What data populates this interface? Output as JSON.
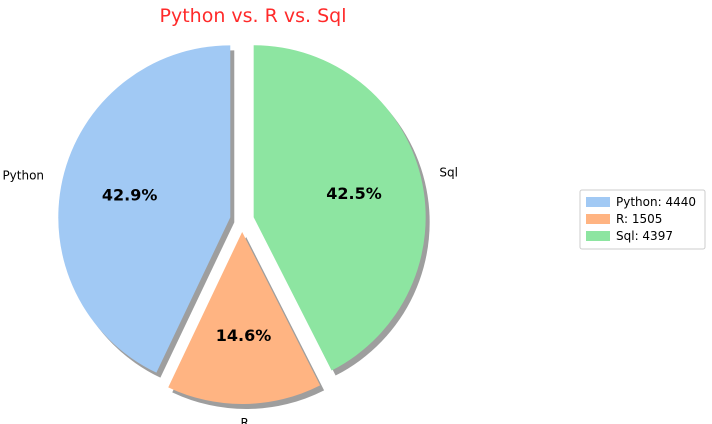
{
  "chart_data": {
    "type": "pie",
    "title": "Python vs. R vs. Sql",
    "title_color": "#ff2a2a",
    "categories": [
      "Python",
      "R",
      "Sql"
    ],
    "values": [
      4440,
      1505,
      4397
    ],
    "percent_labels": [
      "42.9%",
      "14.6%",
      "42.5%"
    ],
    "colors": [
      "#a1c9f4",
      "#ffb482",
      "#8de5a1"
    ],
    "legend": [
      "Python: 4440",
      "R: 1505",
      "Sql: 4397"
    ],
    "legend_position": "right",
    "start_angle_deg": 90,
    "direction": "counterclockwise",
    "exploded": true,
    "shadow": true
  }
}
